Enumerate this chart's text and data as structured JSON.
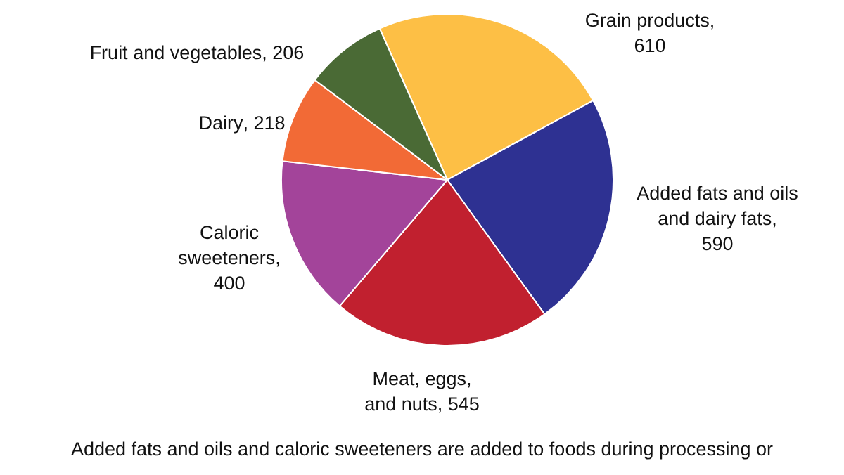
{
  "chart_data": {
    "type": "pie",
    "categories": [
      "Grain products",
      "Added fats and oils and dairy fats",
      "Meat, eggs, and nuts",
      "Caloric sweeteners",
      "Dairy",
      "Fruit and vegetables"
    ],
    "values": [
      610,
      590,
      545,
      400,
      218,
      206
    ],
    "value_labels": [
      ", 610",
      ", 590",
      ", 545",
      ", 400",
      ", 218",
      ", 206"
    ],
    "colors": [
      "#fdbf45",
      "#2e3192",
      "#c1202f",
      "#a3449a",
      "#f26a36",
      "#4a6a35"
    ],
    "annotations": [
      "Added fats and oils and caloric sweeteners are added to foods during processing or"
    ]
  }
}
